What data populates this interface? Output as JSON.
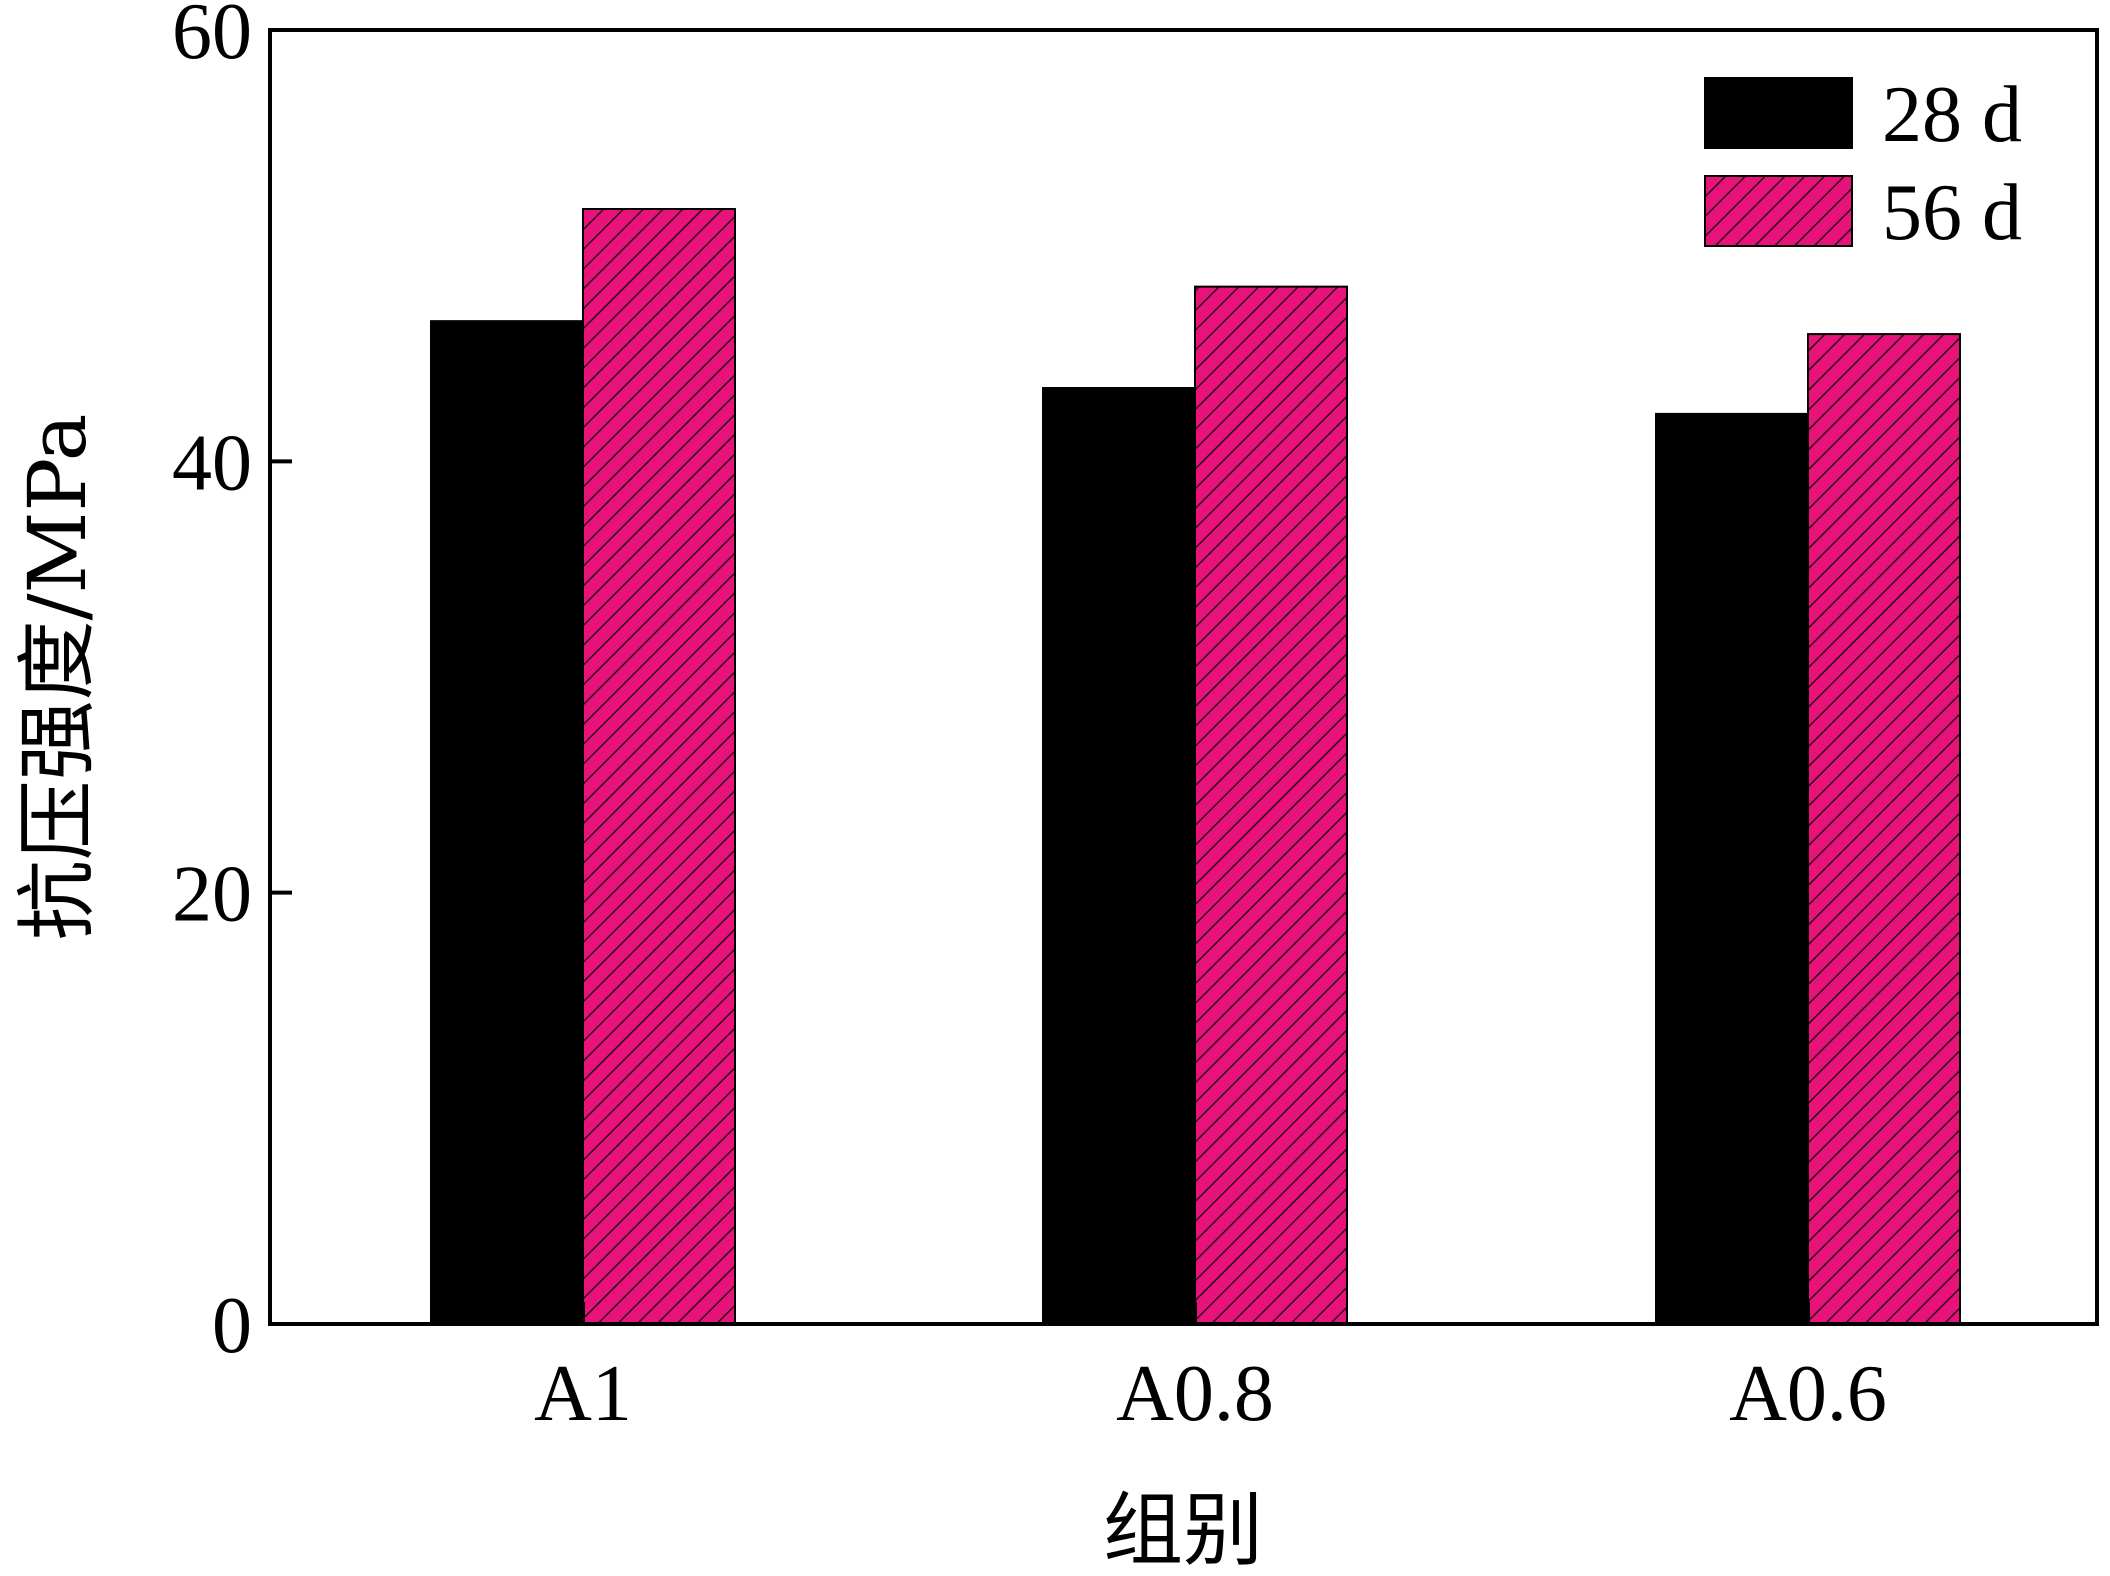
{
  "chart_data": {
    "type": "bar",
    "categories": [
      "A1",
      "A0.8",
      "A0.6"
    ],
    "series": [
      {
        "name": "28 d",
        "values": [
          46.5,
          43.4,
          42.2
        ],
        "color": "#000000",
        "pattern": "solid"
      },
      {
        "name": "56 d",
        "values": [
          51.7,
          48.1,
          45.9
        ],
        "color": "#e8137a",
        "pattern": "hatch"
      }
    ],
    "xlabel": "组别",
    "ylabel": "抗压强度/MPa",
    "ylim": [
      0,
      60
    ],
    "yticks": [
      0,
      20,
      40,
      60
    ],
    "grid": false,
    "legend_position": "top-right"
  }
}
